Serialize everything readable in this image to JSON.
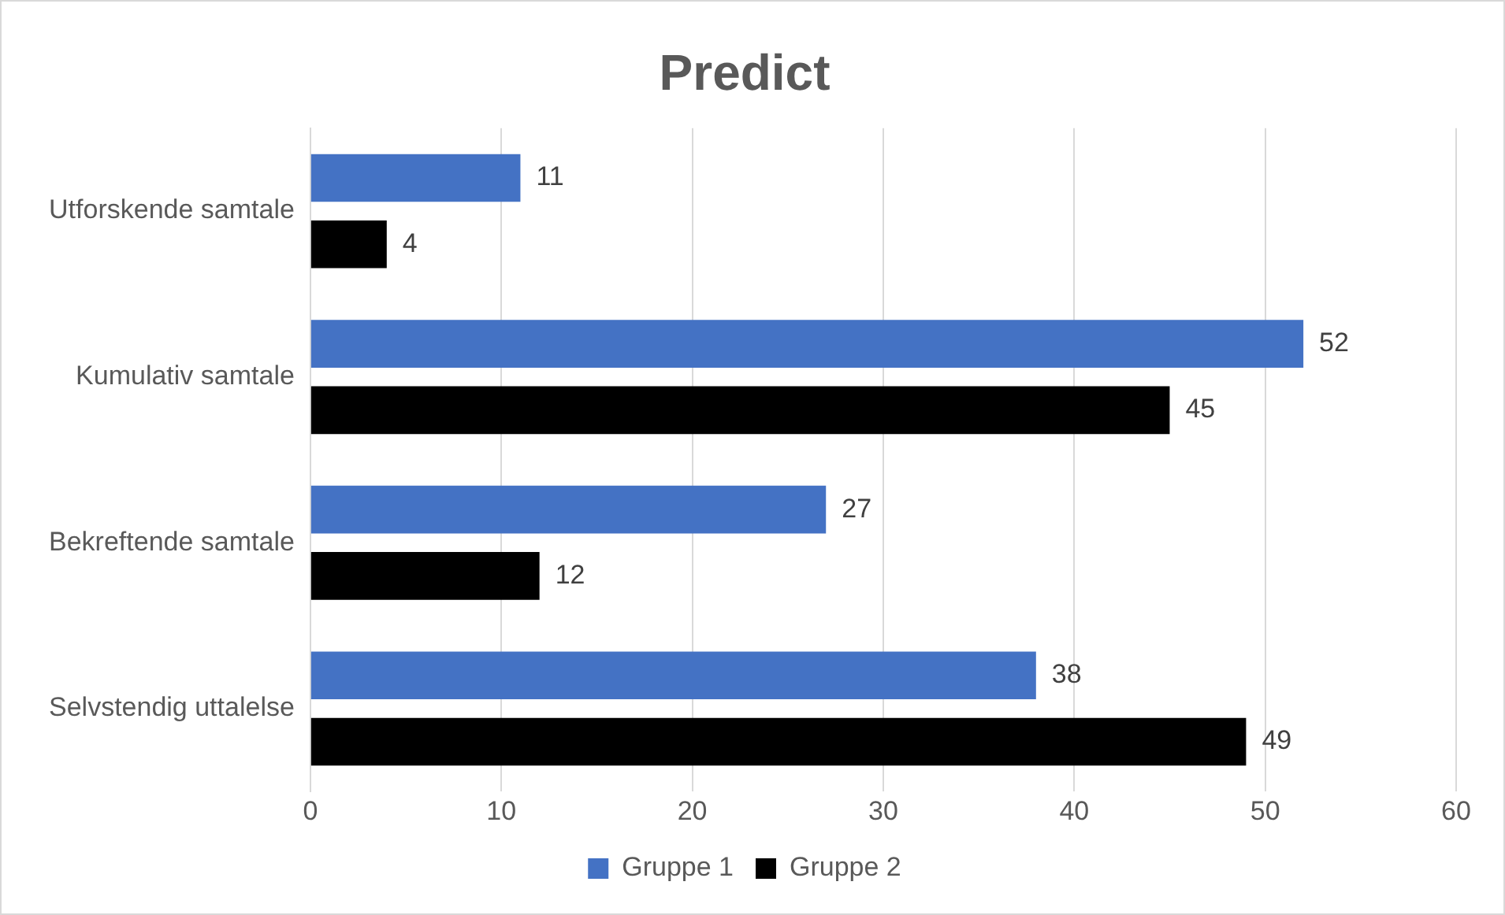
{
  "chart_data": {
    "type": "bar",
    "orientation": "horizontal",
    "title": "Predict",
    "categories": [
      "Utforskende samtale",
      "Kumulativ samtale",
      "Bekreftende samtale",
      "Selvstendig uttalelse"
    ],
    "series": [
      {
        "name": "Gruppe 1",
        "color": "#4472c4",
        "values": [
          11,
          52,
          27,
          38
        ]
      },
      {
        "name": "Gruppe 2",
        "color": "#000000",
        "values": [
          4,
          45,
          12,
          49
        ]
      }
    ],
    "xlim": [
      0,
      60
    ],
    "xticks": [
      0,
      10,
      20,
      30,
      40,
      50,
      60
    ],
    "grid": "x",
    "legend": "bottom",
    "data_labels": true
  }
}
